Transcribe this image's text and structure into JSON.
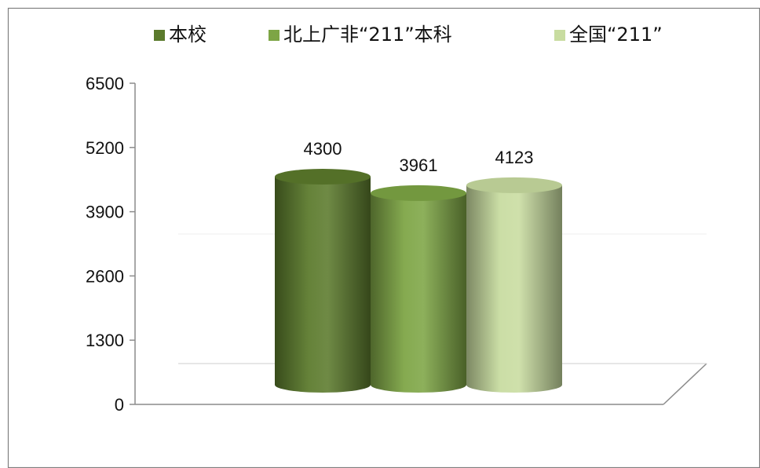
{
  "chart_data": {
    "type": "bar",
    "categories": [
      ""
    ],
    "series": [
      {
        "name": "本校",
        "values": [
          4300
        ],
        "color": "#5b7a2c"
      },
      {
        "name": "北上广非“211”本科",
        "values": [
          3961
        ],
        "color": "#7da545"
      },
      {
        "name": "全国“211”",
        "values": [
          4123
        ],
        "color": "#c8dca0"
      }
    ],
    "title": "",
    "xlabel": "",
    "ylabel": "",
    "ylim": [
      0,
      6500
    ],
    "yticks": [
      0,
      1300,
      2600,
      3900,
      5200,
      6500
    ],
    "ytick_labels": [
      "0",
      "1300",
      "2600",
      "3900",
      "5200",
      "6500"
    ],
    "data_labels": [
      "4300",
      "3961",
      "4123"
    ],
    "legend": {
      "position": "top",
      "entries": [
        "本校",
        "北上广非“211”本科",
        "全国“211”"
      ]
    },
    "grid": false,
    "style": "3d-cylinder"
  }
}
